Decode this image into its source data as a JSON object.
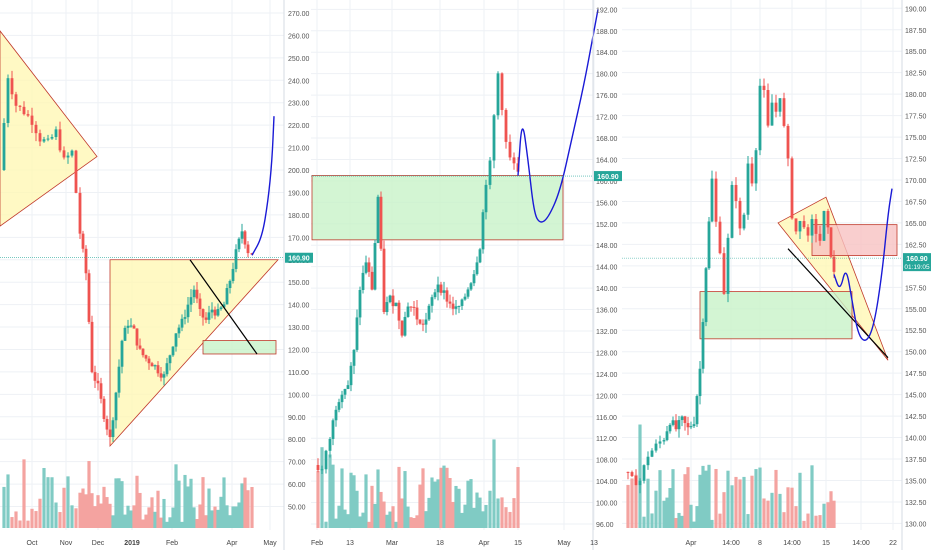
{
  "colors": {
    "up": "#26a69a",
    "down": "#ef5350",
    "vol_up": "#80cbc4",
    "vol_down": "#f4a3a0",
    "triangle_fill": "#fff7b0",
    "zone_green": "#c8f2c8",
    "zone_red": "#f8c2c2",
    "projection": "#1a1ad6",
    "price_badge": "#26a69a"
  },
  "chart_data": [
    {
      "type": "candlestick",
      "panel": "left",
      "x_ticks": [
        "Oct",
        "Nov",
        "Dec",
        "2019",
        "Feb",
        "Apr",
        "May"
      ],
      "y_ticks": [
        "270.00",
        "260.00",
        "250.00",
        "240.00",
        "230.00",
        "220.00",
        "210.00",
        "200.00",
        "190.00",
        "180.00",
        "170.00",
        "160.00",
        "150.00",
        "140.00",
        "130.00",
        "120.00",
        "110.00",
        "100.00",
        "90.00",
        "80.00",
        "70.00",
        "60.00",
        "50.00"
      ],
      "price_badge": "160.90",
      "ylim": [
        44,
        274
      ],
      "grid": true,
      "path_points": [
        [
          0,
          200
        ],
        [
          8,
          242
        ],
        [
          16,
          229
        ],
        [
          24,
          226
        ],
        [
          32,
          222
        ],
        [
          40,
          214
        ],
        [
          48,
          212
        ],
        [
          56,
          217
        ],
        [
          64,
          204
        ],
        [
          72,
          208
        ],
        [
          80,
          172
        ],
        [
          86,
          154
        ],
        [
          92,
          111
        ],
        [
          98,
          103
        ],
        [
          104,
          91
        ],
        [
          110,
          80
        ],
        [
          116,
          101
        ],
        [
          122,
          124
        ],
        [
          128,
          132
        ],
        [
          134,
          128
        ],
        [
          140,
          119
        ],
        [
          146,
          116
        ],
        [
          152,
          114
        ],
        [
          158,
          111
        ],
        [
          164,
          108
        ],
        [
          170,
          118
        ],
        [
          176,
          128
        ],
        [
          182,
          132
        ],
        [
          188,
          140
        ],
        [
          194,
          147
        ],
        [
          200,
          136
        ],
        [
          206,
          133
        ],
        [
          212,
          138
        ],
        [
          218,
          136
        ],
        [
          224,
          140
        ],
        [
          230,
          151
        ],
        [
          236,
          163
        ],
        [
          242,
          173
        ],
        [
          248,
          164
        ],
        [
          252,
          163
        ]
      ],
      "projection": [
        [
          252,
          162
        ],
        [
          262,
          170
        ],
        [
          268,
          186
        ],
        [
          272,
          204
        ],
        [
          274,
          224
        ]
      ],
      "triangles": [
        [
          [
            0,
            262
          ],
          [
            97,
            206
          ],
          [
            0,
            175
          ]
        ],
        [
          [
            110,
            160
          ],
          [
            110,
            77
          ],
          [
            278,
            160
          ]
        ]
      ],
      "zones": [
        {
          "kind": "green",
          "x": [
            203,
            276
          ],
          "y": [
            118,
            124
          ]
        }
      ],
      "trendlines": [
        [
          [
            190,
            160
          ],
          [
            257,
            118
          ]
        ]
      ]
    },
    {
      "type": "candlestick",
      "panel": "middle",
      "x_ticks": [
        "Feb",
        "13",
        "Mar",
        "18",
        "Apr",
        "15",
        "May",
        "13"
      ],
      "y_ticks": [
        "192.00",
        "188.00",
        "184.00",
        "180.00",
        "176.00",
        "172.00",
        "168.00",
        "164.00",
        "160.00",
        "156.00",
        "152.00",
        "148.00",
        "144.00",
        "140.00",
        "136.00",
        "132.00",
        "128.00",
        "124.00",
        "120.00",
        "116.00",
        "112.00",
        "108.00",
        "104.00",
        "100.00",
        "96.00"
      ],
      "price_badge": "160.90",
      "ylim": [
        94.5,
        193
      ],
      "grid": true,
      "path_points": [
        [
          314,
          107
        ],
        [
          322,
          106
        ],
        [
          330,
          112
        ],
        [
          336,
          118
        ],
        [
          342,
          121
        ],
        [
          348,
          122
        ],
        [
          354,
          128
        ],
        [
          360,
          140
        ],
        [
          366,
          145
        ],
        [
          372,
          140
        ],
        [
          378,
          157
        ],
        [
          384,
          136
        ],
        [
          390,
          138
        ],
        [
          396,
          137
        ],
        [
          402,
          132
        ],
        [
          408,
          137
        ],
        [
          414,
          136
        ],
        [
          420,
          133
        ],
        [
          426,
          134
        ],
        [
          432,
          138
        ],
        [
          438,
          141
        ],
        [
          444,
          139
        ],
        [
          450,
          137
        ],
        [
          456,
          136
        ],
        [
          462,
          137
        ],
        [
          468,
          140
        ],
        [
          474,
          143
        ],
        [
          480,
          148
        ],
        [
          486,
          160
        ],
        [
          490,
          163
        ],
        [
          494,
          172
        ],
        [
          498,
          180
        ],
        [
          502,
          174
        ],
        [
          506,
          167
        ],
        [
          510,
          164
        ],
        [
          514,
          163
        ],
        [
          518,
          161
        ]
      ],
      "projection": [
        [
          518,
          161
        ],
        [
          522,
          172
        ],
        [
          528,
          164
        ],
        [
          534,
          154
        ],
        [
          540,
          152
        ],
        [
          548,
          153
        ],
        [
          560,
          158
        ],
        [
          572,
          168
        ],
        [
          584,
          178
        ],
        [
          592,
          186
        ],
        [
          598,
          192
        ]
      ],
      "triangles": [],
      "zones": [
        {
          "kind": "green",
          "x": [
            312,
            563
          ],
          "y": [
            149,
            161
          ]
        }
      ],
      "trendlines": []
    },
    {
      "type": "candlestick",
      "panel": "right",
      "x_ticks": [
        "Apr",
        "14:00",
        "8",
        "14:00",
        "15",
        "14:00",
        "22"
      ],
      "y_ticks": [
        "190.00",
        "187.50",
        "185.00",
        "182.50",
        "180.00",
        "177.50",
        "175.00",
        "172.50",
        "170.00",
        "167.50",
        "165.00",
        "162.50",
        "160.00",
        "157.50",
        "155.00",
        "152.50",
        "150.00",
        "147.50",
        "145.00",
        "142.50",
        "140.00",
        "137.50",
        "135.00",
        "132.50",
        "130.00"
      ],
      "price_badge": "160.90",
      "price_badge_2": "01:19:05",
      "ylim": [
        129,
        190.5
      ],
      "grid": true,
      "path_points": [
        [
          624,
          136
        ],
        [
          632,
          135
        ],
        [
          640,
          135
        ],
        [
          648,
          138
        ],
        [
          656,
          139
        ],
        [
          664,
          140
        ],
        [
          670,
          142
        ],
        [
          676,
          141
        ],
        [
          682,
          142
        ],
        [
          688,
          141
        ],
        [
          694,
          142
        ],
        [
          700,
          148
        ],
        [
          706,
          160
        ],
        [
          712,
          170
        ],
        [
          716,
          165
        ],
        [
          720,
          162
        ],
        [
          724,
          157
        ],
        [
          728,
          163
        ],
        [
          732,
          169
        ],
        [
          736,
          168
        ],
        [
          740,
          164
        ],
        [
          744,
          166
        ],
        [
          748,
          172
        ],
        [
          752,
          170
        ],
        [
          756,
          174
        ],
        [
          760,
          181
        ],
        [
          764,
          180
        ],
        [
          768,
          176
        ],
        [
          772,
          179
        ],
        [
          776,
          178
        ],
        [
          780,
          180
        ],
        [
          784,
          176
        ],
        [
          788,
          172
        ],
        [
          792,
          166
        ],
        [
          796,
          164
        ],
        [
          800,
          165
        ],
        [
          804,
          165
        ],
        [
          808,
          163
        ],
        [
          812,
          165
        ],
        [
          816,
          164
        ],
        [
          820,
          163
        ],
        [
          824,
          166
        ],
        [
          828,
          164
        ],
        [
          834,
          159
        ]
      ],
      "projection": [
        [
          834,
          159
        ],
        [
          840,
          157
        ],
        [
          846,
          160
        ],
        [
          852,
          156
        ],
        [
          858,
          152
        ],
        [
          866,
          151
        ],
        [
          874,
          153
        ],
        [
          882,
          159
        ],
        [
          888,
          166
        ],
        [
          892,
          169
        ]
      ],
      "triangles": [
        [
          [
            778,
            165
          ],
          [
            826,
            168
          ],
          [
            888,
            149
          ]
        ]
      ],
      "zones": [
        {
          "kind": "red",
          "x": [
            812,
            897
          ],
          "y": [
            161.2,
            164.8
          ]
        },
        {
          "kind": "green",
          "x": [
            700,
            852
          ],
          "y": [
            151.5,
            157
          ]
        }
      ],
      "trendlines": [
        [
          [
            788,
            162
          ],
          [
            888,
            149.3
          ]
        ]
      ]
    }
  ]
}
